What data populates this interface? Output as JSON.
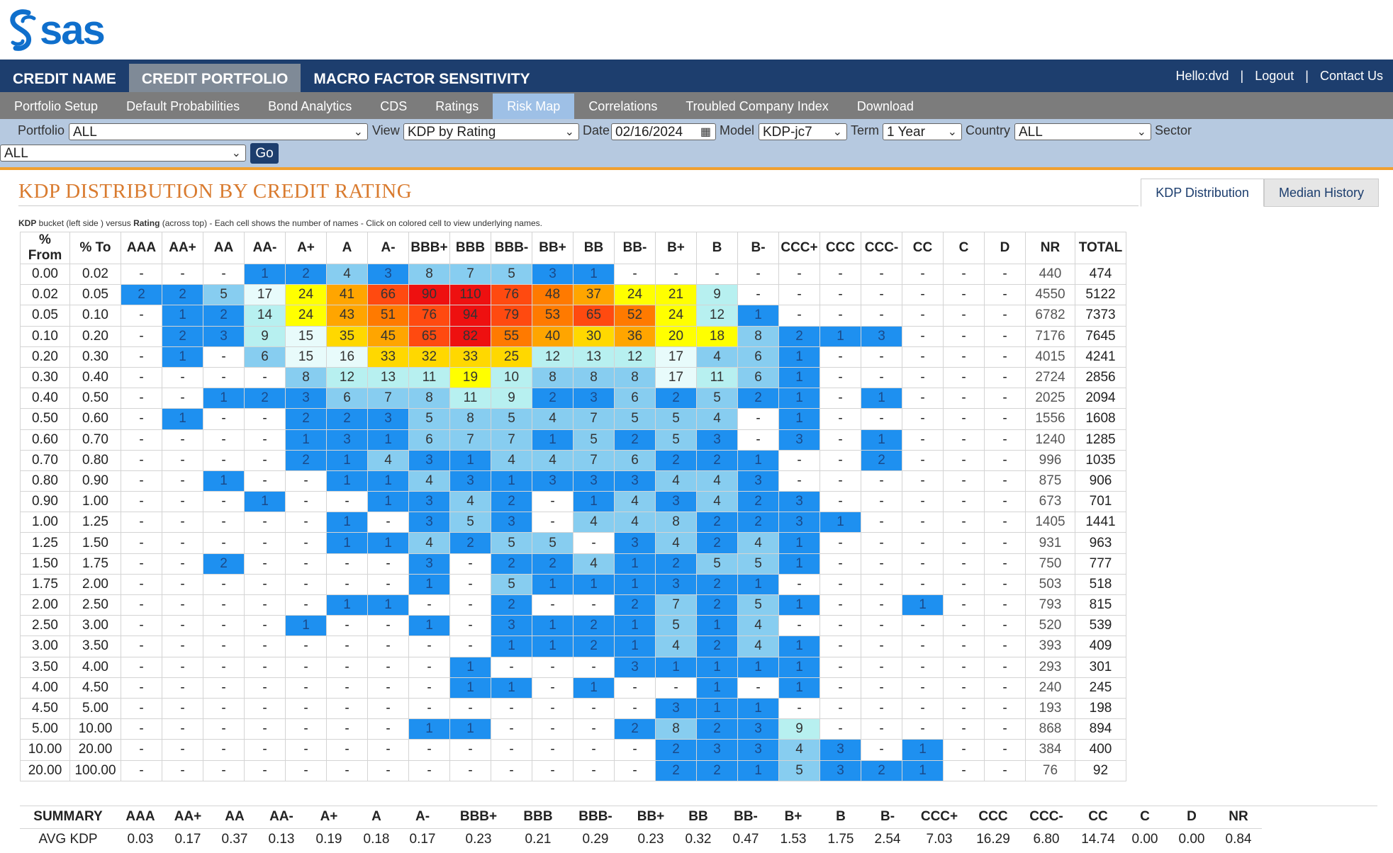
{
  "header": {
    "logo_text": "sas",
    "top_tabs": [
      {
        "label": "CREDIT NAME",
        "active": false
      },
      {
        "label": "CREDIT PORTFOLIO",
        "active": true
      },
      {
        "label": "MACRO FACTOR SENSITIVITY",
        "active": false
      }
    ],
    "user_greeting": "Hello:dvd",
    "logout": "Logout",
    "contact": "Contact Us",
    "separator": "|"
  },
  "subnav": {
    "items": [
      "Portfolio Setup",
      "Default Probabilities",
      "Bond Analytics",
      "CDS",
      "Ratings",
      "Risk Map",
      "Correlations",
      "Troubled Company Index",
      "Download"
    ],
    "active": "Risk Map"
  },
  "filters": {
    "portfolio_label": "Portfolio",
    "portfolio_value": "ALL",
    "view_label": "View",
    "view_value": "KDP by Rating",
    "date_label": "Date",
    "date_value": "02/16/2024",
    "model_label": "Model",
    "model_value": "KDP-jc7",
    "term_label": "Term",
    "term_value": "1 Year",
    "country_label": "Country",
    "country_value": "ALL",
    "sector_label": "Sector",
    "sector_value": "ALL",
    "go_label": "Go"
  },
  "panel": {
    "title": "KDP DISTRIBUTION BY CREDIT RATING",
    "tabs": [
      {
        "label": "KDP Distribution",
        "active": true
      },
      {
        "label": "Median History",
        "active": false
      }
    ],
    "caption_bold1": "KDP",
    "caption_text1": " bucket (left side ) versus ",
    "caption_bold2": "Rating",
    "caption_text2": " (across top) - Each cell shows the number of names - Click on colored cell to view underlying names."
  },
  "colors": {
    "empty": "#ffffff",
    "blue": "#1e90f0",
    "light_blue": "#87cdf0",
    "pale_blue": "#b7f0f0",
    "very_pale": "#e8fbfb",
    "yellow": "#ffff00",
    "yellow_orange": "#ffd800",
    "orange": "#ffa500",
    "dark_orange": "#ff7a00",
    "red_orange": "#ff4a10",
    "red": "#ee1010"
  },
  "grid": {
    "headers": [
      "% From",
      "% To",
      "AAA",
      "AA+",
      "AA",
      "AA-",
      "A+",
      "A",
      "A-",
      "BBB+",
      "BBB",
      "BBB-",
      "BB+",
      "BB",
      "BB-",
      "B+",
      "B",
      "B-",
      "CCC+",
      "CCC",
      "CCC-",
      "CC",
      "C",
      "D",
      "NR",
      "TOTAL"
    ],
    "rows": [
      {
        "from": "0.00",
        "to": "0.02",
        "cells": [
          "-",
          "-",
          "-",
          "1",
          "2",
          "4",
          "3",
          "8",
          "7",
          "5",
          "3",
          "1",
          "-",
          "-",
          "-",
          "-",
          "-",
          "-",
          "-",
          "-",
          "-",
          "-"
        ],
        "nr": "440",
        "total": "474"
      },
      {
        "from": "0.02",
        "to": "0.05",
        "cells": [
          "2",
          "2",
          "5",
          "17",
          "24",
          "41",
          "66",
          "90",
          "110",
          "76",
          "48",
          "37",
          "24",
          "21",
          "9",
          "-",
          "-",
          "-",
          "-",
          "-",
          "-",
          "-"
        ],
        "nr": "4550",
        "total": "5122"
      },
      {
        "from": "0.05",
        "to": "0.10",
        "cells": [
          "-",
          "1",
          "2",
          "14",
          "24",
          "43",
          "51",
          "76",
          "94",
          "79",
          "53",
          "65",
          "52",
          "24",
          "12",
          "1",
          "-",
          "-",
          "-",
          "-",
          "-",
          "-"
        ],
        "nr": "6782",
        "total": "7373"
      },
      {
        "from": "0.10",
        "to": "0.20",
        "cells": [
          "-",
          "2",
          "3",
          "9",
          "15",
          "35",
          "45",
          "65",
          "82",
          "55",
          "40",
          "30",
          "36",
          "20",
          "18",
          "8",
          "2",
          "1",
          "3",
          "-",
          "-",
          "-"
        ],
        "nr": "7176",
        "total": "7645"
      },
      {
        "from": "0.20",
        "to": "0.30",
        "cells": [
          "-",
          "1",
          "-",
          "6",
          "15",
          "16",
          "33",
          "32",
          "33",
          "25",
          "12",
          "13",
          "12",
          "17",
          "4",
          "6",
          "1",
          "-",
          "-",
          "-",
          "-",
          "-"
        ],
        "nr": "4015",
        "total": "4241"
      },
      {
        "from": "0.30",
        "to": "0.40",
        "cells": [
          "-",
          "-",
          "-",
          "-",
          "8",
          "12",
          "13",
          "11",
          "19",
          "10",
          "8",
          "8",
          "8",
          "17",
          "11",
          "6",
          "1",
          "-",
          "-",
          "-",
          "-",
          "-"
        ],
        "nr": "2724",
        "total": "2856"
      },
      {
        "from": "0.40",
        "to": "0.50",
        "cells": [
          "-",
          "-",
          "1",
          "2",
          "3",
          "6",
          "7",
          "8",
          "11",
          "9",
          "2",
          "3",
          "6",
          "2",
          "5",
          "2",
          "1",
          "-",
          "1",
          "-",
          "-",
          "-"
        ],
        "nr": "2025",
        "total": "2094"
      },
      {
        "from": "0.50",
        "to": "0.60",
        "cells": [
          "-",
          "1",
          "-",
          "-",
          "2",
          "2",
          "3",
          "5",
          "8",
          "5",
          "4",
          "7",
          "5",
          "5",
          "4",
          "-",
          "1",
          "-",
          "-",
          "-",
          "-",
          "-"
        ],
        "nr": "1556",
        "total": "1608"
      },
      {
        "from": "0.60",
        "to": "0.70",
        "cells": [
          "-",
          "-",
          "-",
          "-",
          "1",
          "3",
          "1",
          "6",
          "7",
          "7",
          "1",
          "5",
          "2",
          "5",
          "3",
          "-",
          "3",
          "-",
          "1",
          "-",
          "-",
          "-"
        ],
        "nr": "1240",
        "total": "1285"
      },
      {
        "from": "0.70",
        "to": "0.80",
        "cells": [
          "-",
          "-",
          "-",
          "-",
          "2",
          "1",
          "4",
          "3",
          "1",
          "4",
          "4",
          "7",
          "6",
          "2",
          "2",
          "1",
          "-",
          "-",
          "2",
          "-",
          "-",
          "-"
        ],
        "nr": "996",
        "total": "1035"
      },
      {
        "from": "0.80",
        "to": "0.90",
        "cells": [
          "-",
          "-",
          "1",
          "-",
          "-",
          "1",
          "1",
          "4",
          "3",
          "1",
          "3",
          "3",
          "3",
          "4",
          "4",
          "3",
          "-",
          "-",
          "-",
          "-",
          "-",
          "-"
        ],
        "nr": "875",
        "total": "906"
      },
      {
        "from": "0.90",
        "to": "1.00",
        "cells": [
          "-",
          "-",
          "-",
          "1",
          "-",
          "-",
          "1",
          "3",
          "4",
          "2",
          "-",
          "1",
          "4",
          "3",
          "4",
          "2",
          "3",
          "-",
          "-",
          "-",
          "-",
          "-"
        ],
        "nr": "673",
        "total": "701"
      },
      {
        "from": "1.00",
        "to": "1.25",
        "cells": [
          "-",
          "-",
          "-",
          "-",
          "-",
          "1",
          "-",
          "3",
          "5",
          "3",
          "-",
          "4",
          "4",
          "8",
          "2",
          "2",
          "3",
          "1",
          "-",
          "-",
          "-",
          "-"
        ],
        "nr": "1405",
        "total": "1441"
      },
      {
        "from": "1.25",
        "to": "1.50",
        "cells": [
          "-",
          "-",
          "-",
          "-",
          "-",
          "1",
          "1",
          "4",
          "2",
          "5",
          "5",
          "-",
          "3",
          "4",
          "2",
          "4",
          "1",
          "-",
          "-",
          "-",
          "-",
          "-"
        ],
        "nr": "931",
        "total": "963"
      },
      {
        "from": "1.50",
        "to": "1.75",
        "cells": [
          "-",
          "-",
          "2",
          "-",
          "-",
          "-",
          "-",
          "3",
          "-",
          "2",
          "2",
          "4",
          "1",
          "2",
          "5",
          "5",
          "1",
          "-",
          "-",
          "-",
          "-",
          "-"
        ],
        "nr": "750",
        "total": "777"
      },
      {
        "from": "1.75",
        "to": "2.00",
        "cells": [
          "-",
          "-",
          "-",
          "-",
          "-",
          "-",
          "-",
          "1",
          "-",
          "5",
          "1",
          "1",
          "1",
          "3",
          "2",
          "1",
          "-",
          "-",
          "-",
          "-",
          "-",
          "-"
        ],
        "nr": "503",
        "total": "518"
      },
      {
        "from": "2.00",
        "to": "2.50",
        "cells": [
          "-",
          "-",
          "-",
          "-",
          "-",
          "1",
          "1",
          "-",
          "-",
          "2",
          "-",
          "-",
          "2",
          "7",
          "2",
          "5",
          "1",
          "-",
          "-",
          "1",
          "-",
          "-"
        ],
        "nr": "793",
        "total": "815"
      },
      {
        "from": "2.50",
        "to": "3.00",
        "cells": [
          "-",
          "-",
          "-",
          "-",
          "1",
          "-",
          "-",
          "1",
          "-",
          "3",
          "1",
          "2",
          "1",
          "5",
          "1",
          "4",
          "-",
          "-",
          "-",
          "-",
          "-",
          "-"
        ],
        "nr": "520",
        "total": "539"
      },
      {
        "from": "3.00",
        "to": "3.50",
        "cells": [
          "-",
          "-",
          "-",
          "-",
          "-",
          "-",
          "-",
          "-",
          "-",
          "1",
          "1",
          "2",
          "1",
          "4",
          "2",
          "4",
          "1",
          "-",
          "-",
          "-",
          "-",
          "-"
        ],
        "nr": "393",
        "total": "409"
      },
      {
        "from": "3.50",
        "to": "4.00",
        "cells": [
          "-",
          "-",
          "-",
          "-",
          "-",
          "-",
          "-",
          "-",
          "1",
          "-",
          "-",
          "-",
          "3",
          "1",
          "1",
          "1",
          "1",
          "-",
          "-",
          "-",
          "-",
          "-"
        ],
        "nr": "293",
        "total": "301"
      },
      {
        "from": "4.00",
        "to": "4.50",
        "cells": [
          "-",
          "-",
          "-",
          "-",
          "-",
          "-",
          "-",
          "-",
          "1",
          "1",
          "-",
          "1",
          "-",
          "-",
          "1",
          "-",
          "1",
          "-",
          "-",
          "-",
          "-",
          "-"
        ],
        "nr": "240",
        "total": "245"
      },
      {
        "from": "4.50",
        "to": "5.00",
        "cells": [
          "-",
          "-",
          "-",
          "-",
          "-",
          "-",
          "-",
          "-",
          "-",
          "-",
          "-",
          "-",
          "-",
          "3",
          "1",
          "1",
          "-",
          "-",
          "-",
          "-",
          "-",
          "-"
        ],
        "nr": "193",
        "total": "198"
      },
      {
        "from": "5.00",
        "to": "10.00",
        "cells": [
          "-",
          "-",
          "-",
          "-",
          "-",
          "-",
          "-",
          "1",
          "1",
          "-",
          "-",
          "-",
          "2",
          "8",
          "2",
          "3",
          "9",
          "-",
          "-",
          "-",
          "-",
          "-"
        ],
        "nr": "868",
        "total": "894"
      },
      {
        "from": "10.00",
        "to": "20.00",
        "cells": [
          "-",
          "-",
          "-",
          "-",
          "-",
          "-",
          "-",
          "-",
          "-",
          "-",
          "-",
          "-",
          "-",
          "2",
          "3",
          "3",
          "4",
          "3",
          "-",
          "1",
          "-",
          "-"
        ],
        "nr": "384",
        "total": "400"
      },
      {
        "from": "20.00",
        "to": "100.00",
        "cells": [
          "-",
          "-",
          "-",
          "-",
          "-",
          "-",
          "-",
          "-",
          "-",
          "-",
          "-",
          "-",
          "-",
          "2",
          "2",
          "1",
          "5",
          "3",
          "2",
          "1",
          "-",
          "-"
        ],
        "nr": "76",
        "total": "92"
      }
    ]
  },
  "summary": {
    "headers": [
      "SUMMARY",
      "AAA",
      "AA+",
      "AA",
      "AA-",
      "A+",
      "A",
      "A-",
      "BBB+",
      "BBB",
      "BBB-",
      "BB+",
      "BB",
      "BB-",
      "B+",
      "B",
      "B-",
      "CCC+",
      "CCC",
      "CCC-",
      "CC",
      "C",
      "D",
      "NR"
    ],
    "row_label": "AVG KDP",
    "values": [
      "0.03",
      "0.17",
      "0.37",
      "0.13",
      "0.19",
      "0.18",
      "0.17",
      "0.23",
      "0.21",
      "0.29",
      "0.23",
      "0.32",
      "0.47",
      "1.53",
      "1.75",
      "2.54",
      "7.03",
      "16.29",
      "6.80",
      "14.74",
      "0.00",
      "0.00",
      "0.84"
    ]
  }
}
